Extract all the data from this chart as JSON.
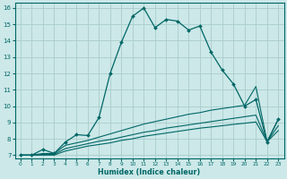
{
  "xlabel": "Humidex (Indice chaleur)",
  "bg_color": "#cce8e8",
  "grid_color": "#aacccc",
  "line_color": "#006666",
  "xlim": [
    -0.5,
    23.5
  ],
  "ylim": [
    6.8,
    16.3
  ],
  "xticks": [
    0,
    1,
    2,
    3,
    4,
    5,
    6,
    7,
    8,
    9,
    10,
    11,
    12,
    13,
    14,
    15,
    16,
    17,
    18,
    19,
    20,
    21,
    22,
    23
  ],
  "yticks": [
    7,
    8,
    9,
    10,
    11,
    12,
    13,
    14,
    15,
    16
  ],
  "curve1_x": [
    0,
    1,
    2,
    3,
    4,
    5,
    6,
    7,
    8,
    9,
    10,
    11,
    12,
    13,
    14,
    15,
    16,
    17,
    18,
    19,
    20,
    21,
    22,
    23
  ],
  "curve1_y": [
    7.0,
    7.0,
    7.35,
    7.1,
    7.8,
    8.25,
    8.2,
    9.3,
    12.0,
    13.9,
    15.5,
    16.0,
    14.8,
    15.3,
    15.2,
    14.65,
    14.9,
    13.3,
    12.2,
    11.35,
    10.0,
    10.4,
    7.8,
    9.2
  ],
  "curve2_x": [
    0,
    1,
    2,
    3,
    4,
    5,
    6,
    7,
    8,
    9,
    10,
    11,
    12,
    13,
    14,
    15,
    16,
    17,
    18,
    19,
    20,
    21,
    22,
    23
  ],
  "curve2_y": [
    7.0,
    7.0,
    7.1,
    7.1,
    7.6,
    7.75,
    7.9,
    8.1,
    8.3,
    8.5,
    8.7,
    8.9,
    9.05,
    9.2,
    9.35,
    9.5,
    9.6,
    9.75,
    9.85,
    9.95,
    10.05,
    11.2,
    7.82,
    9.2
  ],
  "curve3_x": [
    0,
    1,
    2,
    3,
    4,
    5,
    6,
    7,
    8,
    9,
    10,
    11,
    12,
    13,
    14,
    15,
    16,
    17,
    18,
    19,
    20,
    21,
    22,
    23
  ],
  "curve3_y": [
    7.0,
    7.0,
    7.05,
    7.05,
    7.4,
    7.55,
    7.7,
    7.85,
    7.95,
    8.1,
    8.25,
    8.4,
    8.5,
    8.65,
    8.75,
    8.85,
    8.95,
    9.05,
    9.15,
    9.25,
    9.35,
    9.45,
    7.82,
    8.8
  ],
  "curve4_x": [
    0,
    1,
    2,
    3,
    4,
    5,
    6,
    7,
    8,
    9,
    10,
    11,
    12,
    13,
    14,
    15,
    16,
    17,
    18,
    19,
    20,
    21,
    22,
    23
  ],
  "curve4_y": [
    7.0,
    7.0,
    7.0,
    7.0,
    7.25,
    7.4,
    7.55,
    7.65,
    7.75,
    7.9,
    8.0,
    8.15,
    8.25,
    8.35,
    8.45,
    8.55,
    8.65,
    8.72,
    8.8,
    8.88,
    8.95,
    9.03,
    7.82,
    8.5
  ]
}
